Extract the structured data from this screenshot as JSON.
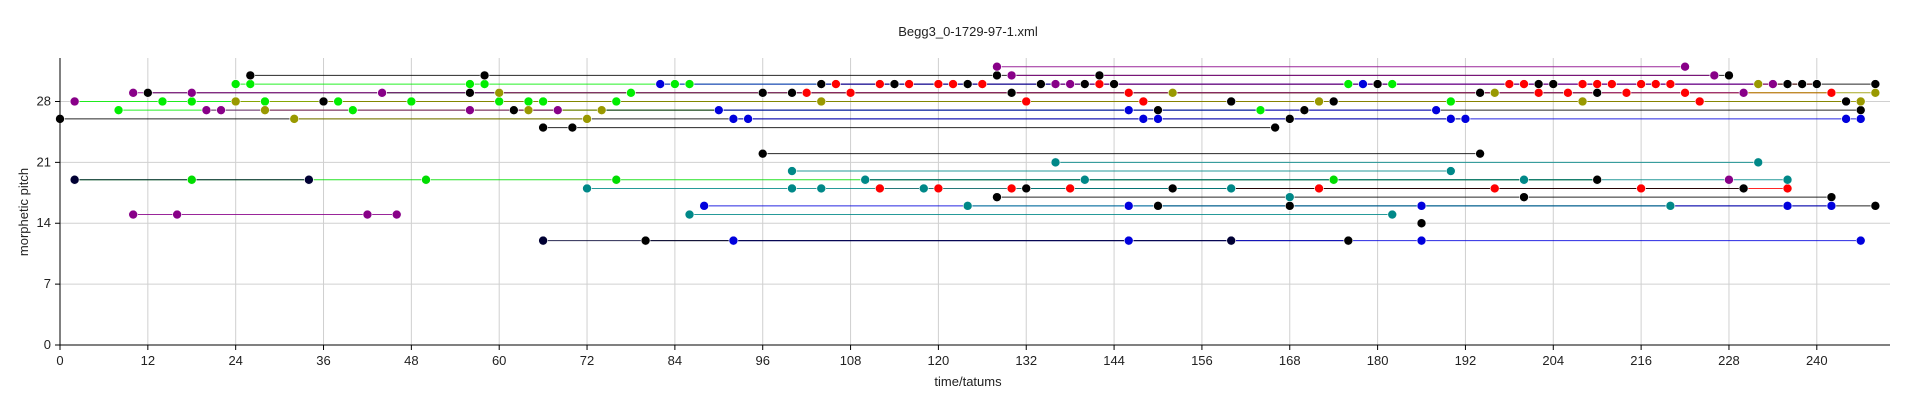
{
  "chart_data": {
    "type": "scatter",
    "title": "Begg3_0-1729-97-1.xml",
    "xlabel": "time/tatums",
    "ylabel": "morphetic pitch",
    "xlim": [
      0,
      250
    ],
    "ylim": [
      0,
      33
    ],
    "xticks": [
      0,
      12,
      24,
      36,
      48,
      60,
      72,
      84,
      96,
      108,
      120,
      132,
      144,
      156,
      168,
      180,
      192,
      204,
      216,
      228,
      240
    ],
    "yticks": [
      0,
      7,
      14,
      21,
      28
    ],
    "grid": true,
    "legend": "none",
    "series": [
      {
        "color": "#00ee00",
        "points": [
          [
            2,
            28
          ],
          [
            8,
            27
          ],
          [
            14,
            28
          ],
          [
            18,
            28
          ],
          [
            24,
            30
          ],
          [
            26,
            30
          ],
          [
            28,
            28
          ],
          [
            38,
            28
          ],
          [
            40,
            27
          ],
          [
            44,
            29
          ],
          [
            48,
            28
          ],
          [
            56,
            30
          ],
          [
            58,
            30
          ],
          [
            60,
            28
          ],
          [
            64,
            28
          ],
          [
            66,
            28
          ],
          [
            76,
            28
          ],
          [
            78,
            29
          ],
          [
            82,
            30
          ],
          [
            84,
            30
          ],
          [
            86,
            30
          ],
          [
            160,
            28
          ],
          [
            164,
            27
          ],
          [
            172,
            28
          ],
          [
            176,
            30
          ],
          [
            180,
            30
          ],
          [
            182,
            30
          ],
          [
            190,
            28
          ],
          [
            196,
            29
          ]
        ]
      },
      {
        "color": "#00dd00",
        "points": [
          [
            2,
            19
          ],
          [
            18,
            19
          ],
          [
            34,
            19
          ],
          [
            50,
            19
          ],
          [
            76,
            19
          ],
          [
            110,
            19
          ],
          [
            174,
            19
          ],
          [
            210,
            19
          ]
        ]
      },
      {
        "color": "#ff0000",
        "points": [
          [
            102,
            29
          ],
          [
            106,
            30
          ],
          [
            108,
            29
          ],
          [
            112,
            30
          ],
          [
            114,
            30
          ],
          [
            116,
            30
          ],
          [
            120,
            30
          ],
          [
            122,
            30
          ],
          [
            124,
            30
          ],
          [
            126,
            30
          ],
          [
            130,
            29
          ],
          [
            132,
            28
          ],
          [
            138,
            30
          ],
          [
            140,
            30
          ],
          [
            142,
            30
          ],
          [
            146,
            29
          ],
          [
            148,
            28
          ],
          [
            196,
            29
          ],
          [
            198,
            30
          ],
          [
            200,
            30
          ],
          [
            202,
            29
          ],
          [
            206,
            29
          ],
          [
            208,
            30
          ],
          [
            210,
            30
          ],
          [
            212,
            30
          ],
          [
            214,
            29
          ],
          [
            216,
            30
          ],
          [
            218,
            30
          ],
          [
            220,
            30
          ],
          [
            222,
            29
          ],
          [
            224,
            28
          ],
          [
            238,
            30
          ],
          [
            240,
            30
          ],
          [
            242,
            29
          ],
          [
            112,
            18
          ],
          [
            120,
            18
          ],
          [
            130,
            18
          ],
          [
            138,
            18
          ],
          [
            172,
            18
          ],
          [
            196,
            18
          ],
          [
            216,
            18
          ],
          [
            236,
            18
          ]
        ]
      },
      {
        "color": "#000000",
        "points": [
          [
            0,
            26
          ],
          [
            12,
            29
          ],
          [
            26,
            31
          ],
          [
            36,
            28
          ],
          [
            44,
            29
          ],
          [
            56,
            29
          ],
          [
            58,
            31
          ],
          [
            62,
            27
          ],
          [
            66,
            25
          ],
          [
            70,
            25
          ],
          [
            96,
            29
          ],
          [
            100,
            29
          ],
          [
            104,
            30
          ],
          [
            114,
            30
          ],
          [
            124,
            30
          ],
          [
            128,
            31
          ],
          [
            130,
            29
          ],
          [
            134,
            30
          ],
          [
            140,
            30
          ],
          [
            142,
            31
          ],
          [
            144,
            30
          ],
          [
            150,
            27
          ],
          [
            160,
            28
          ],
          [
            166,
            25
          ],
          [
            168,
            26
          ],
          [
            170,
            27
          ],
          [
            174,
            28
          ],
          [
            180,
            30
          ],
          [
            188,
            27
          ],
          [
            192,
            26
          ],
          [
            194,
            29
          ],
          [
            202,
            30
          ],
          [
            204,
            30
          ],
          [
            210,
            29
          ],
          [
            228,
            31
          ],
          [
            232,
            30
          ],
          [
            236,
            30
          ],
          [
            238,
            30
          ],
          [
            240,
            30
          ],
          [
            244,
            28
          ],
          [
            246,
            27
          ],
          [
            248,
            30
          ],
          [
            96,
            22
          ],
          [
            194,
            22
          ],
          [
            80,
            12
          ],
          [
            176,
            12
          ],
          [
            128,
            17
          ],
          [
            186,
            14
          ],
          [
            200,
            17
          ],
          [
            242,
            17
          ],
          [
            248,
            16
          ],
          [
            132,
            18
          ],
          [
            150,
            16
          ],
          [
            168,
            16
          ],
          [
            110,
            19
          ],
          [
            152,
            18
          ],
          [
            210,
            19
          ],
          [
            230,
            18
          ]
        ]
      },
      {
        "color": "#0000dd",
        "points": [
          [
            82,
            30
          ],
          [
            90,
            27
          ],
          [
            92,
            26
          ],
          [
            94,
            26
          ],
          [
            136,
            30
          ],
          [
            146,
            27
          ],
          [
            148,
            26
          ],
          [
            150,
            26
          ],
          [
            178,
            30
          ],
          [
            188,
            27
          ],
          [
            190,
            26
          ],
          [
            192,
            26
          ],
          [
            232,
            30
          ],
          [
            244,
            26
          ],
          [
            246,
            26
          ],
          [
            88,
            16
          ],
          [
            146,
            16
          ],
          [
            186,
            16
          ],
          [
            236,
            16
          ],
          [
            242,
            16
          ],
          [
            92,
            12
          ],
          [
            146,
            12
          ],
          [
            186,
            12
          ],
          [
            246,
            12
          ]
        ]
      },
      {
        "color": "#999900",
        "points": [
          [
            24,
            28
          ],
          [
            28,
            27
          ],
          [
            32,
            26
          ],
          [
            60,
            29
          ],
          [
            64,
            27
          ],
          [
            72,
            26
          ],
          [
            74,
            27
          ],
          [
            104,
            28
          ],
          [
            152,
            29
          ],
          [
            172,
            28
          ],
          [
            196,
            29
          ],
          [
            208,
            28
          ],
          [
            232,
            30
          ],
          [
            246,
            28
          ],
          [
            248,
            29
          ]
        ]
      },
      {
        "color": "#880088",
        "points": [
          [
            2,
            28
          ],
          [
            10,
            29
          ],
          [
            16,
            15
          ],
          [
            18,
            29
          ],
          [
            20,
            27
          ],
          [
            22,
            27
          ],
          [
            44,
            29
          ],
          [
            46,
            15
          ],
          [
            56,
            27
          ],
          [
            68,
            27
          ],
          [
            128,
            32
          ],
          [
            130,
            31
          ],
          [
            136,
            30
          ],
          [
            138,
            30
          ],
          [
            222,
            32
          ],
          [
            226,
            31
          ],
          [
            230,
            29
          ],
          [
            234,
            30
          ],
          [
            10,
            15
          ],
          [
            42,
            15
          ],
          [
            228,
            19
          ]
        ]
      },
      {
        "color": "#008888",
        "points": [
          [
            72,
            18
          ],
          [
            100,
            20
          ],
          [
            104,
            18
          ],
          [
            110,
            19
          ],
          [
            118,
            18
          ],
          [
            124,
            16
          ],
          [
            136,
            21
          ],
          [
            140,
            19
          ],
          [
            160,
            18
          ],
          [
            168,
            17
          ],
          [
            182,
            15
          ],
          [
            190,
            20
          ],
          [
            200,
            19
          ],
          [
            220,
            16
          ],
          [
            232,
            21
          ],
          [
            236,
            19
          ],
          [
            86,
            15
          ],
          [
            100,
            18
          ]
        ]
      },
      {
        "color": "#000033",
        "points": [
          [
            2,
            19
          ],
          [
            34,
            19
          ],
          [
            66,
            12
          ],
          [
            160,
            12
          ]
        ]
      }
    ]
  }
}
